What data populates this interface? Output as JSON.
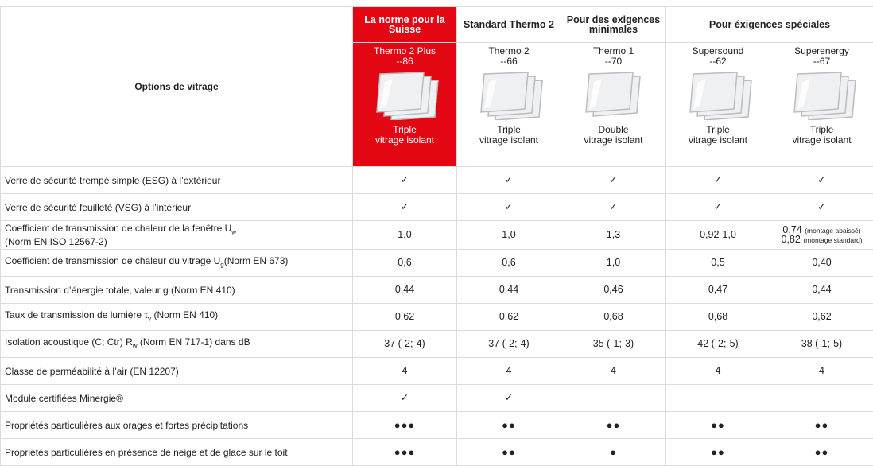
{
  "header": {
    "title": "Options de vitrage",
    "groups": [
      {
        "label": "La norme pour la Suisse",
        "products": [
          {
            "name": "Thermo 2 Plus",
            "code": "--86",
            "desc": [
              "Triple",
              "vitrage isolant"
            ]
          }
        ]
      },
      {
        "label": "Standard Thermo 2",
        "products": [
          {
            "name": "Thermo 2",
            "code": "--66",
            "desc": [
              "Triple",
              "vitrage isolant"
            ]
          }
        ]
      },
      {
        "label": "Pour des exigences minimales",
        "products": [
          {
            "name": "Thermo 1",
            "code": "--70",
            "desc": [
              "Double",
              "vitrage isolant"
            ]
          }
        ]
      },
      {
        "label": "Pour éxigences spéciales",
        "products": [
          {
            "name": "Supersound",
            "code": "--62",
            "desc": [
              "Triple",
              "vitrage isolant"
            ]
          },
          {
            "name": "Superenergy",
            "code": "--67",
            "desc": [
              "Triple",
              "vitrage isolant"
            ]
          }
        ]
      }
    ]
  },
  "table": {
    "rows": [
      {
        "label": "Verre de sécurité trempé simple (ESG) à l’extérieur",
        "cells": [
          "✓",
          "✓",
          "✓",
          "✓",
          "✓"
        ]
      },
      {
        "label": "Verre de sécurité feuilleté (VSG) à l’intérieur",
        "cells": [
          "✓",
          "✓",
          "✓",
          "✓",
          "✓"
        ]
      },
      {
        "label": {
          "text": "Coefficient de transmission de chaleur de la fenêtre U",
          "sub": "w",
          "note": "(Norm EN ISO 12567-2)"
        },
        "cells": [
          "1,0",
          "1,0",
          "1,3",
          "0,92-1,0",
          [
            {
              "text": "0,74",
              "note": "(montage abaissé)"
            },
            {
              "text": "0,82",
              "note": "(montage standard)"
            }
          ]
        ]
      },
      {
        "label": {
          "text": "Coefficient de transmission de chaleur du vitrage U",
          "sub": "g",
          "after": "(Norm EN 673)"
        },
        "cells": [
          "0,6",
          "0,6",
          "1,0",
          "0,5",
          "0,40"
        ]
      },
      {
        "label": "Transmission d’énergie totale, valeur g (Norm EN 410)",
        "cells": [
          "0,44",
          "0,44",
          "0,46",
          "0,47",
          "0,44"
        ]
      },
      {
        "label": {
          "text": "Taux de transmission de lumière τ",
          "sub": "v",
          "after": " (Norm EN 410)"
        },
        "cells": [
          "0,62",
          "0,62",
          "0,68",
          "0,68",
          "0,62"
        ]
      },
      {
        "label": {
          "text": "Isolation acoustique (C; Ctr) R",
          "sub": "w",
          "after": " (Norm EN 717-1) dans dB"
        },
        "cells": [
          "37 (-2;-4)",
          "37 (-2;-4)",
          "35 (-1;-3)",
          "42 (-2;-5)",
          "38 (-1;-5)"
        ]
      },
      {
        "label": "Classe de perméabilité à l’air (EN 12207)",
        "cells": [
          "4",
          "4",
          "4",
          "4",
          "4"
        ]
      },
      {
        "label": "Module certifiées Minergie®",
        "cells": [
          "✓",
          "✓",
          null,
          null,
          null
        ]
      },
      {
        "label": "Propriétés particulières aux orages et fortes précipitations",
        "cells": [
          "●●●",
          "●●",
          "●●",
          "●●",
          "●●"
        ]
      },
      {
        "label": "Propriétés particulières en présence de neige et de glace sur le toit",
        "cells": [
          "●●●",
          "●●",
          "●",
          "●●",
          "●●"
        ]
      }
    ]
  }
}
